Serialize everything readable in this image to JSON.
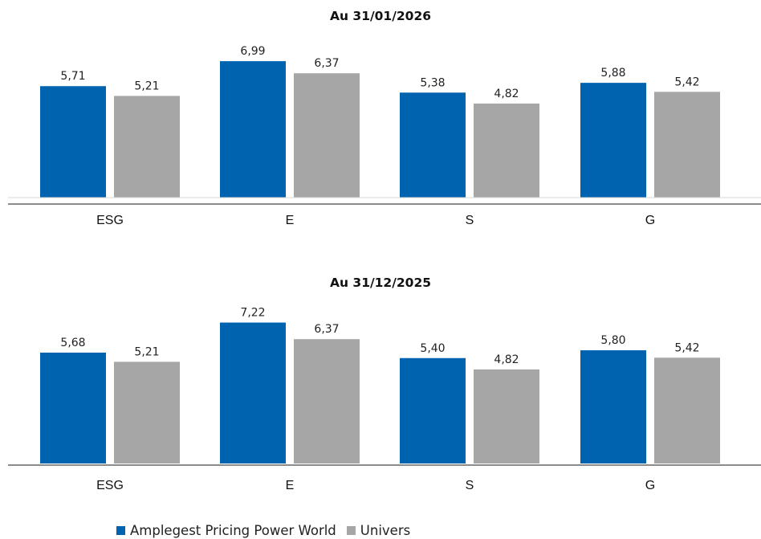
{
  "chart_data": [
    {
      "type": "bar",
      "title": "Au 31/01/2026",
      "categories": [
        "ESG",
        "E",
        "S",
        "G"
      ],
      "series": [
        {
          "name": "Amplegest Pricing Power World",
          "values": [
            5.71,
            6.99,
            5.38,
            5.88
          ],
          "labels": [
            "5,71",
            "6,99",
            "5,38",
            "5,88"
          ],
          "color": "#0063b0"
        },
        {
          "name": "Univers",
          "values": [
            5.21,
            6.37,
            4.82,
            5.42
          ],
          "labels": [
            "5,21",
            "6,37",
            "4,82",
            "5,42"
          ],
          "color": "#a6a6a6"
        }
      ],
      "ylim": [
        0,
        7.4
      ],
      "grid": false
    },
    {
      "type": "bar",
      "title": "Au 31/12/2025",
      "categories": [
        "ESG",
        "E",
        "S",
        "G"
      ],
      "series": [
        {
          "name": "Amplegest Pricing Power World",
          "values": [
            5.68,
            7.22,
            5.4,
            5.8
          ],
          "labels": [
            "5,68",
            "7,22",
            "5,40",
            "5,80"
          ],
          "color": "#0063b0"
        },
        {
          "name": "Univers",
          "values": [
            5.21,
            6.37,
            4.82,
            5.42
          ],
          "labels": [
            "5,21",
            "6,37",
            "4,82",
            "5,42"
          ],
          "color": "#a6a6a6"
        }
      ],
      "ylim": [
        0,
        7.4
      ],
      "grid": false
    }
  ],
  "legend": {
    "position": "bottom-center",
    "items": [
      {
        "label": "Amplegest Pricing Power World",
        "color": "#0063b0"
      },
      {
        "label": "Univers",
        "color": "#a6a6a6"
      }
    ]
  }
}
